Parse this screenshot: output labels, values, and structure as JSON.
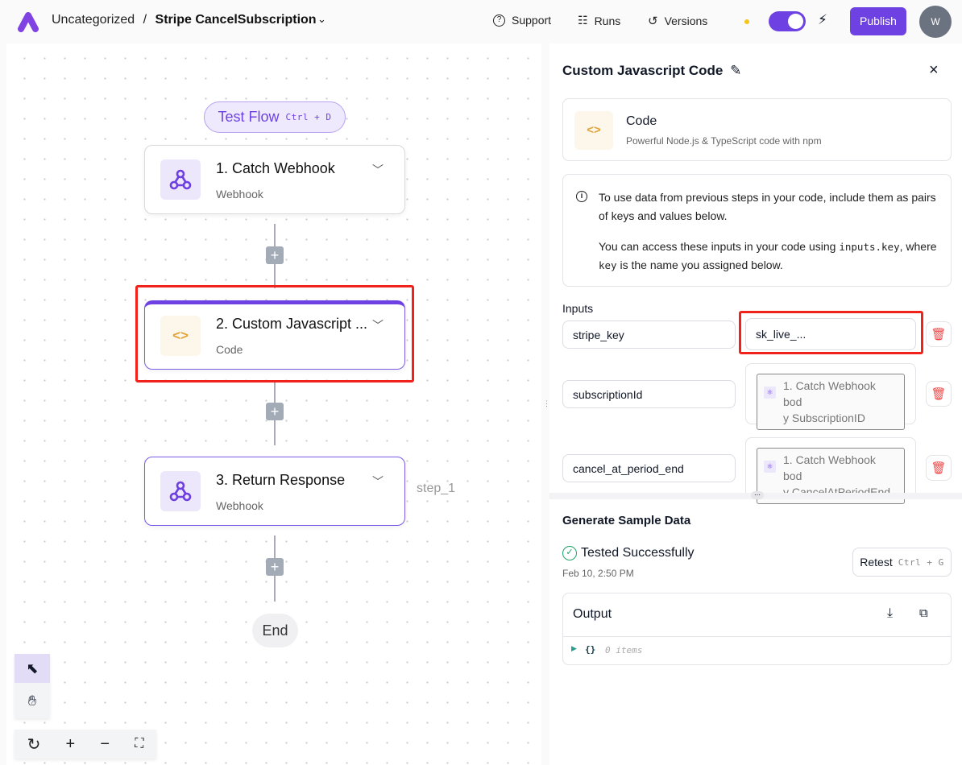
{
  "header": {
    "breadcrumb_folder": "Uncategorized",
    "separator": "/",
    "flow_name": "Stripe CancelSubscription",
    "support": "Support",
    "runs": "Runs",
    "versions": "Versions",
    "publish": "Publish",
    "avatar": "W",
    "toggle_on": true,
    "accent": "#6e41e2"
  },
  "canvas": {
    "test_flow": {
      "label": "Test Flow",
      "shortcut": "Ctrl + D"
    },
    "steps": [
      {
        "title": "1. Catch Webhook",
        "subtitle": "Webhook",
        "icon": "webhook-icon"
      },
      {
        "title": "2. Custom Javascript ...",
        "subtitle": "Code",
        "icon": "code-icon"
      },
      {
        "title": "3. Return Response",
        "subtitle": "Webhook",
        "icon": "webhook-icon"
      }
    ],
    "step_label": "step_1",
    "end": "End"
  },
  "panel": {
    "title": "Custom Javascript Code",
    "piece": {
      "name": "Code",
      "description": "Powerful Node.js & TypeScript code with npm"
    },
    "info": {
      "p1": "To use data from previous steps in your code, include them as pairs of keys and values below.",
      "p2_a": "You can access these inputs in your code using ",
      "p2_code1": "inputs.key",
      "p2_b": ", where ",
      "p2_code2": "key",
      "p2_c": " is the name you assigned below."
    },
    "inputs_label": "Inputs",
    "inputs": [
      {
        "key": "stripe_key",
        "value": "sk_live_..."
      },
      {
        "key": "subscriptionId",
        "ref": "1. Catch Webhook body SubscriptionID",
        "ref_l1": "1. Catch Webhook bod",
        "ref_l2": "y SubscriptionID"
      },
      {
        "key": "cancel_at_period_end",
        "ref": "1. Catch Webhook body CancelAtPeriodEnd",
        "ref_l1": "1. Catch Webhook bod",
        "ref_l2": "y CancelAtPeriodEnd"
      }
    ],
    "sample": {
      "title": "Generate Sample Data",
      "status": "Tested Successfully",
      "date": "Feb 10, 2:50 PM",
      "retest": "Retest",
      "retest_shortcut": "Ctrl + G",
      "output": "Output",
      "json_braces": "{}",
      "json_items": "0 items"
    }
  }
}
